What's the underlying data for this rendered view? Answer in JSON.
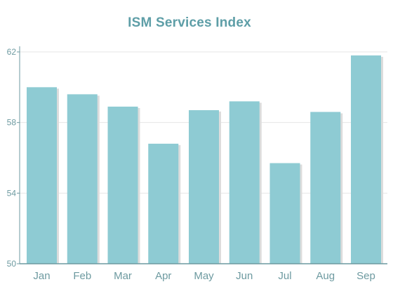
{
  "chart_data": {
    "type": "bar",
    "title": "ISM Services Index",
    "xlabel": "",
    "ylabel": "",
    "categories": [
      "Jan",
      "Feb",
      "Mar",
      "Apr",
      "May",
      "Jun",
      "Jul",
      "Aug",
      "Sep"
    ],
    "values": [
      60.0,
      59.6,
      58.9,
      56.8,
      58.7,
      59.2,
      55.7,
      58.6,
      61.8
    ],
    "ylim": [
      50,
      62
    ],
    "yticks": [
      50,
      54,
      58,
      62
    ],
    "grid": true,
    "legend": "none"
  },
  "colors": {
    "bar": "#8ecbd3",
    "bar_shadow": "#dcdcdc",
    "axis": "#6d9aa0",
    "grid": "#e6e6e6",
    "title": "#5e9ea7",
    "labels": "#6d9aa0"
  }
}
